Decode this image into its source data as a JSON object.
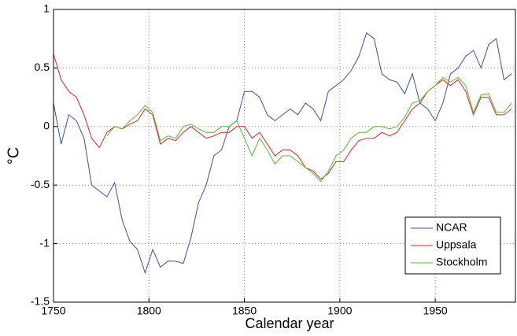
{
  "chart_data": {
    "type": "line",
    "xlabel": "Calendar year",
    "ylabel": "°C",
    "x": [
      1750,
      1754,
      1758,
      1762,
      1766,
      1770,
      1774,
      1778,
      1782,
      1786,
      1790,
      1794,
      1798,
      1802,
      1806,
      1810,
      1814,
      1818,
      1822,
      1826,
      1830,
      1834,
      1838,
      1842,
      1846,
      1850,
      1854,
      1858,
      1862,
      1866,
      1870,
      1874,
      1878,
      1882,
      1886,
      1890,
      1894,
      1898,
      1902,
      1906,
      1910,
      1914,
      1918,
      1922,
      1926,
      1930,
      1934,
      1938,
      1942,
      1946,
      1950,
      1954,
      1958,
      1962,
      1966,
      1970,
      1974,
      1978,
      1982,
      1986,
      1990
    ],
    "series": [
      {
        "name": "NCAR",
        "color": "#3b4fa8",
        "values": [
          0.2,
          -0.15,
          0.1,
          0.05,
          -0.1,
          -0.5,
          -0.55,
          -0.6,
          -0.48,
          -0.8,
          -0.98,
          -1.05,
          -1.25,
          -1.05,
          -1.2,
          -1.15,
          -1.15,
          -1.17,
          -0.95,
          -0.65,
          -0.5,
          -0.25,
          -0.2,
          0,
          0.05,
          0.3,
          0.3,
          0.25,
          0.1,
          0.05,
          0.1,
          0.15,
          0.1,
          0.2,
          0.15,
          0.05,
          0.3,
          0.35,
          0.4,
          0.48,
          0.6,
          0.8,
          0.75,
          0.45,
          0.4,
          0.38,
          0.28,
          0.45,
          0.2,
          0.15,
          0.05,
          0.2,
          0.45,
          0.5,
          0.6,
          0.65,
          0.5,
          0.7,
          0.75,
          0.4,
          0.45
        ]
      },
      {
        "name": "Uppsala",
        "color": "#d9252b",
        "values": [
          0.62,
          0.4,
          0.3,
          0.25,
          0.1,
          -0.1,
          -0.18,
          -0.05,
          0,
          -0.02,
          0.02,
          0.05,
          0.15,
          0.1,
          -0.15,
          -0.1,
          -0.12,
          -0.05,
          0,
          -0.05,
          -0.1,
          -0.08,
          -0.05,
          -0.05,
          0,
          0,
          -0.1,
          -0.05,
          -0.15,
          -0.25,
          -0.2,
          -0.2,
          -0.25,
          -0.35,
          -0.38,
          -0.45,
          -0.4,
          -0.3,
          -0.3,
          -0.2,
          -0.12,
          -0.1,
          -0.1,
          -0.05,
          -0.08,
          -0.05,
          0.05,
          0.15,
          0.2,
          0.3,
          0.35,
          0.4,
          0.35,
          0.4,
          0.3,
          0.1,
          0.25,
          0.25,
          0.1,
          0.1,
          0.15
        ]
      },
      {
        "name": "Stockholm",
        "color": "#5cb82e",
        "values": [
          null,
          null,
          null,
          null,
          null,
          null,
          null,
          -0.08,
          0,
          -0.02,
          0.05,
          0.1,
          0.18,
          0.12,
          -0.12,
          -0.08,
          -0.1,
          0,
          0.02,
          -0.02,
          -0.05,
          -0.05,
          0,
          0,
          0.05,
          -0.1,
          -0.25,
          -0.1,
          -0.2,
          -0.32,
          -0.25,
          -0.25,
          -0.3,
          -0.35,
          -0.4,
          -0.47,
          -0.38,
          -0.25,
          -0.2,
          -0.1,
          -0.05,
          -0.05,
          0,
          0,
          -0.02,
          0,
          0.08,
          0.2,
          0.22,
          0.3,
          0.35,
          0.42,
          0.38,
          0.42,
          0.35,
          0.12,
          0.27,
          0.28,
          0.12,
          0.12,
          0.2
        ]
      }
    ],
    "xlim": [
      1750,
      1992
    ],
    "xticks": [
      1750,
      1800,
      1850,
      1900,
      1950
    ],
    "ylim": [
      -1.5,
      1
    ],
    "yticks": [
      -1.5,
      -1,
      -0.5,
      0,
      0.5,
      1
    ],
    "grid": true,
    "legend": "lower right"
  }
}
